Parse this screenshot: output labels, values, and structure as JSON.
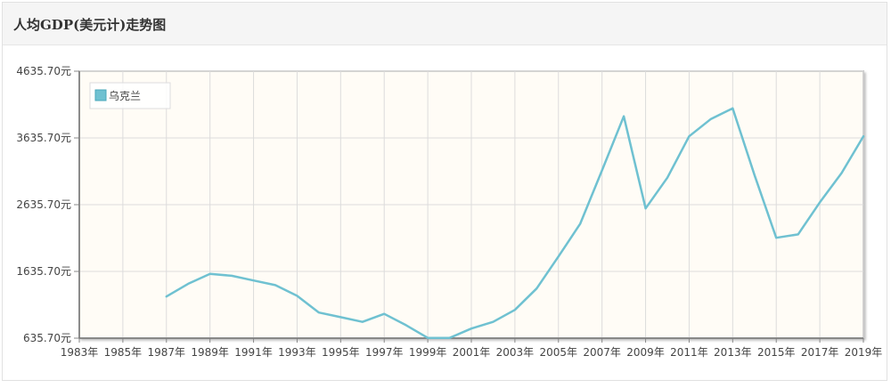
{
  "header": {
    "title": "人均GDP(美元计)走势图"
  },
  "chart_data": {
    "type": "line",
    "title": "人均GDP(美元计)走势图",
    "xlabel": "",
    "ylabel": "",
    "x_tick_labels": [
      "1983年",
      "1985年",
      "1987年",
      "1989年",
      "1991年",
      "1993年",
      "1995年",
      "1997年",
      "1999年",
      "2001年",
      "2003年",
      "2005年",
      "2007年",
      "2009年",
      "2011年",
      "2013年",
      "2015年",
      "2017年",
      "2019年"
    ],
    "y_tick_labels": [
      "4635.70元",
      "3635.70元",
      "2635.70元",
      "1635.70元",
      "635.70元"
    ],
    "ylim": [
      635.7,
      4635.7
    ],
    "xlim": [
      1983,
      2019
    ],
    "grid": true,
    "legend": {
      "position": "top-left"
    },
    "series": [
      {
        "name": "乌克兰",
        "color": "#6fc1d1",
        "x": [
          1987,
          1988,
          1989,
          1990,
          1991,
          1992,
          1993,
          1994,
          1995,
          1996,
          1997,
          1998,
          1999,
          2000,
          2001,
          2002,
          2003,
          2004,
          2005,
          2006,
          2007,
          2008,
          2009,
          2010,
          2011,
          2012,
          2013,
          2014,
          2015,
          2016,
          2017,
          2018,
          2019
        ],
        "values": [
          1260,
          1450,
          1600,
          1570,
          1500,
          1430,
          1270,
          1020,
          950,
          880,
          1000,
          830,
          640,
          640,
          780,
          880,
          1060,
          1380,
          1860,
          2350,
          3150,
          3960,
          2580,
          3040,
          3660,
          3920,
          4080,
          3080,
          2140,
          2190,
          2670,
          3110,
          3660
        ]
      }
    ]
  }
}
